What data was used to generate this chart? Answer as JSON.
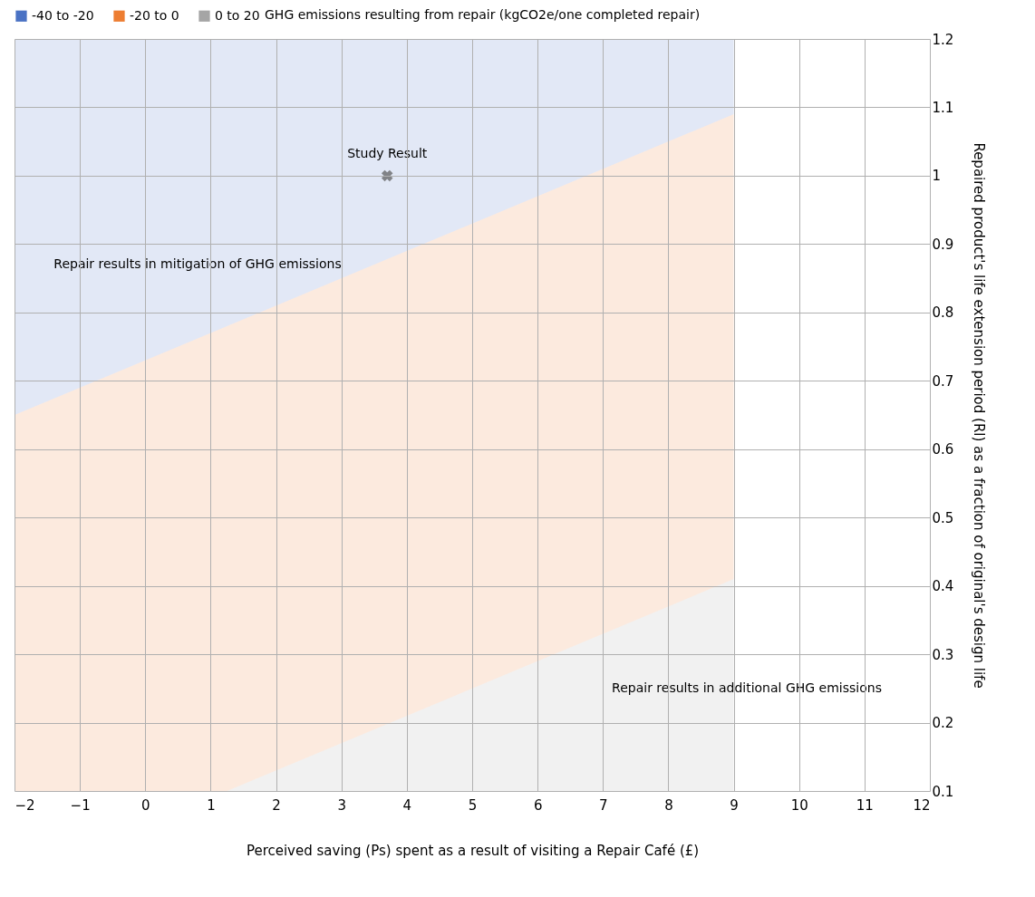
{
  "chart_data": {
    "type": "area",
    "stacked": true,
    "xlabel": "Perceived saving (Ps) spent as a result of visiting a Repair Café (£)",
    "ylabel": "Repaired product's life extension period (Rl) as a fraction of original's design life",
    "legend_title": "GHG emissions resulting from repair (kgCO2e/one completed repair)",
    "legend": "top",
    "grid": true,
    "xlim": [
      -2,
      12
    ],
    "ylim": [
      0.1,
      1.2
    ],
    "xticks": [
      -2,
      -1,
      0,
      1,
      2,
      3,
      4,
      5,
      6,
      7,
      8,
      9,
      10,
      11,
      12
    ],
    "yticks": [
      0.1,
      0.2,
      0.3,
      0.4,
      0.5,
      0.6,
      0.7,
      0.8,
      0.9,
      1,
      1.1,
      1.2
    ],
    "x": [
      -2,
      1.25,
      9
    ],
    "series": [
      {
        "name": "0 to 20",
        "color": "#a5a5a5",
        "values": [
          0.1,
          0.1,
          0.41
        ]
      },
      {
        "name": "-20 to 0",
        "color": "#ed7d31",
        "values": [
          0.55,
          0.68,
          0.68
        ]
      },
      {
        "name": "-40 to -20",
        "color": "#4a72c4",
        "values": [
          0.55,
          0.42,
          0.11
        ]
      },
      {
        "type": "scatter",
        "color": "#595959",
        "marker": "cross",
        "x": [
          3.7
        ],
        "values": [
          1.0
        ]
      }
    ],
    "annotations": [
      {
        "text": "Study Result",
        "x": 3.7,
        "y": 1.0
      },
      "Repair results in mitigation of GHG emissions",
      "Repair results in additional GHG emissions"
    ]
  }
}
